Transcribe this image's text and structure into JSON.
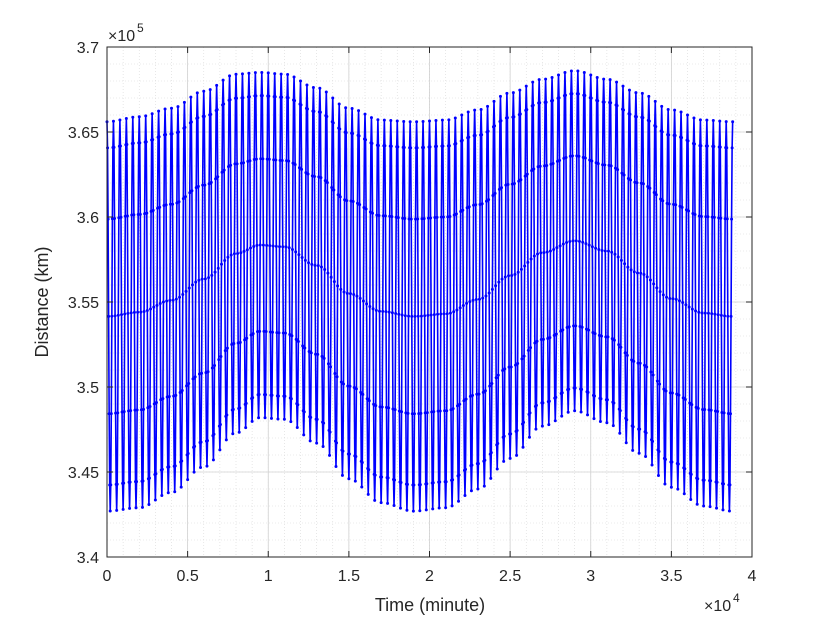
{
  "chart_data": {
    "type": "line",
    "title": "",
    "xlabel": "Time (minute)",
    "ylabel": "Distance (km)",
    "x_exponent_label": "×10",
    "x_exponent": "4",
    "y_exponent_label": "×10",
    "y_exponent": "5",
    "xlim": [
      0,
      40000
    ],
    "ylim": [
      340000,
      370000
    ],
    "x_ticks": [
      0,
      5000,
      10000,
      15000,
      20000,
      25000,
      30000,
      35000,
      40000
    ],
    "x_tick_labels": [
      "0",
      "0.5",
      "1",
      "1.5",
      "2",
      "2.5",
      "3",
      "3.5",
      "4"
    ],
    "y_ticks": [
      340000,
      345000,
      350000,
      355000,
      360000,
      365000,
      370000
    ],
    "y_tick_labels": [
      "3.4",
      "3.45",
      "3.5",
      "3.55",
      "3.6",
      "3.65",
      "3.7"
    ],
    "grid": true,
    "minor_grid": true,
    "legend": "none",
    "series": [
      {
        "color": "#0000ff",
        "marker": "dot",
        "x_range": [
          0,
          38800
        ],
        "oscillation_period": 400,
        "peak_envelope": {
          "x": [
            0,
            2000,
            4000,
            6000,
            8000,
            9500,
            11000,
            13000,
            15000,
            17000,
            19000,
            21000,
            23000,
            25000,
            27000,
            29000,
            31000,
            33000,
            35000,
            37000,
            38800
          ],
          "y": [
            365600,
            365900,
            366400,
            367400,
            368400,
            368500,
            368400,
            367600,
            366400,
            365700,
            365600,
            365700,
            366300,
            367300,
            368100,
            368600,
            368100,
            367300,
            366300,
            365700,
            365600
          ]
        },
        "trough_envelope": {
          "x": [
            0,
            2000,
            4000,
            6000,
            8000,
            9500,
            11000,
            13000,
            15000,
            17000,
            19000,
            21000,
            23000,
            25000,
            27000,
            29000,
            31000,
            33000,
            35000,
            37000,
            38800
          ],
          "y": [
            342700,
            342900,
            343800,
            345300,
            347300,
            348200,
            348100,
            346700,
            344600,
            343200,
            342700,
            342900,
            344000,
            345800,
            347700,
            348600,
            347900,
            346100,
            344100,
            343000,
            342700
          ]
        }
      }
    ]
  }
}
